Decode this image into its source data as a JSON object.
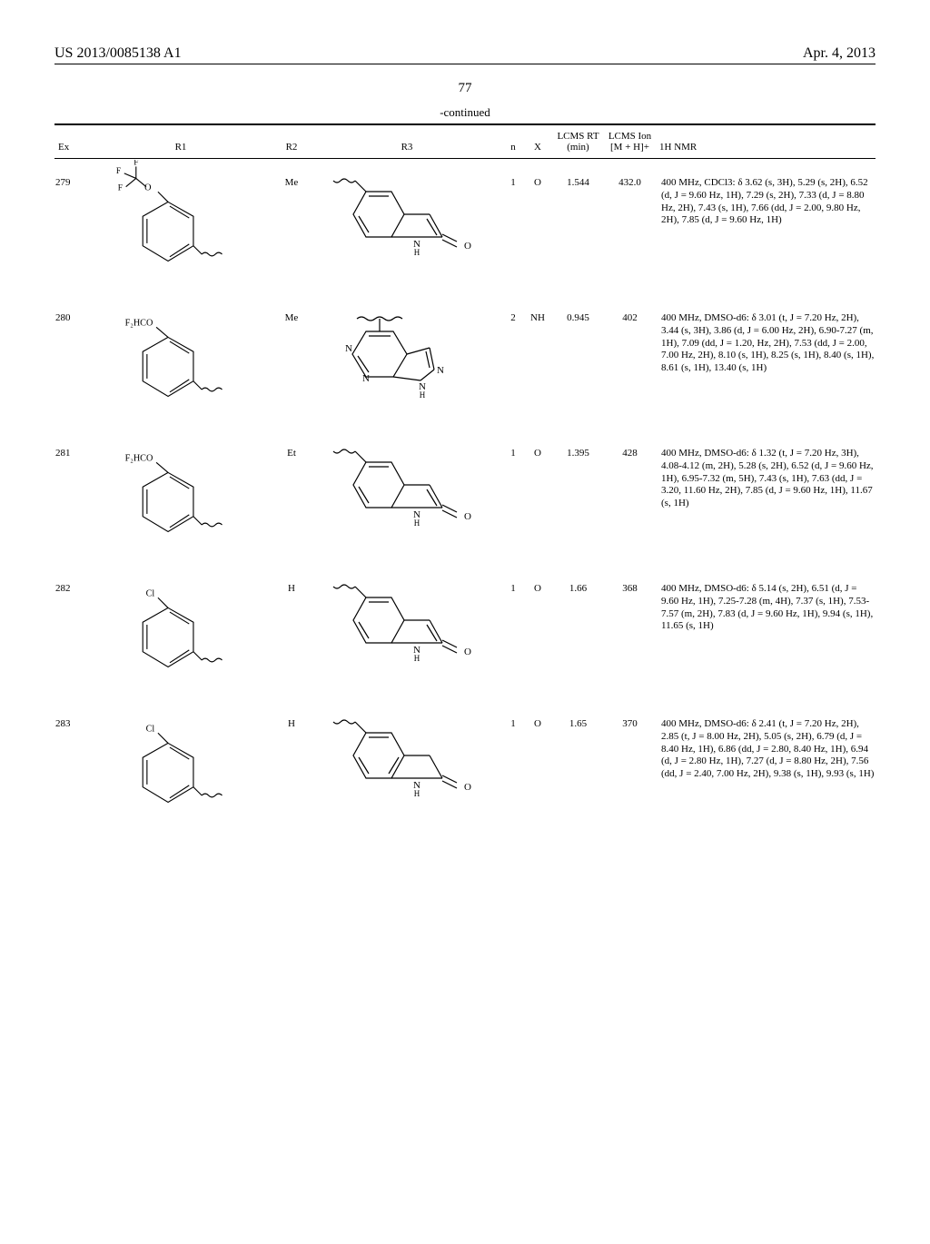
{
  "header": {
    "left": "US 2013/0085138 A1",
    "right": "Apr. 4, 2013"
  },
  "page_number": "77",
  "table": {
    "caption": "-continued",
    "columns": {
      "ex": "Ex",
      "r1": "R1",
      "r2": "R2",
      "r3": "R3",
      "n": "n",
      "x": "X",
      "lcms_rt": "LCMS RT (min)",
      "lcms_ion": "LCMS Ion [M + H]+",
      "nmr": "1H NMR"
    },
    "rows": [
      {
        "ex": "279",
        "r1_struct": "cf3o-phenyl",
        "r1_prefix": "F",
        "r2": "Me",
        "r3_struct": "quinolinone",
        "n": "1",
        "x": "O",
        "lcms_rt": "1.544",
        "lcms_ion": "432.0",
        "nmr": "400 MHz, CDCl3: δ 3.62 (s, 3H), 5.29 (s, 2H), 6.52 (d, J = 9.60 Hz, 1H), 7.29 (s, 2H), 7.33 (d, J = 8.80 Hz, 2H), 7.43 (s, 1H), 7.66 (dd, J = 2.00, 9.80 Hz, 2H), 7.85 (d, J = 9.60 Hz, 1H)"
      },
      {
        "ex": "280",
        "r1_struct": "f2hco-phenyl",
        "r1_prefix": "F₂HCO",
        "r2": "Me",
        "r3_struct": "pyrazolopyrimidine",
        "n": "2",
        "x": "NH",
        "lcms_rt": "0.945",
        "lcms_ion": "402",
        "nmr": "400 MHz, DMSO-d6: δ 3.01 (t, J = 7.20 Hz, 2H), 3.44 (s, 3H), 3.86 (d, J = 6.00 Hz, 2H), 6.90-7.27 (m, 1H), 7.09 (dd, J = 1.20, Hz, 2H), 7.53 (dd, J = 2.00, 7.00 Hz, 2H), 8.10 (s, 1H), 8.25 (s, 1H), 8.40 (s, 1H), 8.61 (s, 1H), 13.40 (s, 1H)"
      },
      {
        "ex": "281",
        "r1_struct": "f2hco-phenyl",
        "r1_prefix": "F₂HCO",
        "r2": "Et",
        "r3_struct": "quinolinone",
        "n": "1",
        "x": "O",
        "lcms_rt": "1.395",
        "lcms_ion": "428",
        "nmr": "400 MHz, DMSO-d6: δ 1.32 (t, J = 7.20 Hz, 3H), 4.08-4.12 (m, 2H), 5.28 (s, 2H), 6.52 (d, J = 9.60 Hz, 1H), 6.95-7.32 (m, 5H), 7.43 (s, 1H), 7.63 (dd, J = 3.20, 11.60 Hz, 2H), 7.85 (d, J = 9.60 Hz, 1H), 11.67 (s, 1H)"
      },
      {
        "ex": "282",
        "r1_struct": "cl-phenyl",
        "r1_prefix": "Cl",
        "r2": "H",
        "r3_struct": "quinolinone",
        "n": "1",
        "x": "O",
        "lcms_rt": "1.66",
        "lcms_ion": "368",
        "nmr": "400 MHz, DMSO-d6: δ 5.14 (s, 2H), 6.51 (d, J = 9.60 Hz, 1H), 7.25-7.28 (m, 4H), 7.37 (s, 1H), 7.53-7.57 (m, 2H), 7.83 (d, J = 9.60 Hz, 1H), 9.94 (s, 1H), 11.65 (s, 1H)"
      },
      {
        "ex": "283",
        "r1_struct": "cl-phenyl",
        "r1_prefix": "Cl",
        "r2": "H",
        "r3_struct": "dihydroquinolinone",
        "n": "1",
        "x": "O",
        "lcms_rt": "1.65",
        "lcms_ion": "370",
        "nmr": "400 MHz, DMSO-d6: δ 2.41 (t, J = 7.20 Hz, 2H), 2.85 (t, J = 8.00 Hz, 2H), 5.05 (s, 2H), 6.79 (d, J = 8.40 Hz, 1H), 6.86 (dd, J = 2.80, 8.40 Hz, 1H), 6.94 (d, J = 2.80 Hz, 1H), 7.27 (d, J = 8.80 Hz, 2H), 7.56 (dd, J = 2.40, 7.00 Hz, 2H), 9.38 (s, 1H), 9.93 (s, 1H)"
      }
    ]
  }
}
